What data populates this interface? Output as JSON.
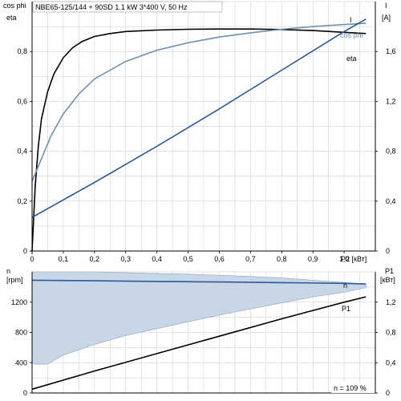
{
  "chart_data": [
    {
      "type": "line",
      "title": "NBE65-125/144 + 90SD   1.1 kW   3*400 V, 50 Hz",
      "left_axis_labels": [
        "cos phi",
        "eta"
      ],
      "right_axis_label": "I",
      "right_axis_unit": "[A]",
      "x_axis_label": "P2 [кВт]",
      "xlim": [
        0,
        1.1
      ],
      "ylim_left": [
        0,
        1.0
      ],
      "ylim_right": [
        0,
        2.0
      ],
      "x_ticks": [
        "0",
        "0,1",
        "0,2",
        "0,3",
        "0,4",
        "0,5",
        "0,6",
        "0,7",
        "0,8",
        "0,9",
        "1,0"
      ],
      "y_left_ticks": [
        "0",
        "0,2",
        "0,4",
        "0,6",
        "0,8"
      ],
      "y_right_ticks": [
        "0",
        "0,4",
        "0,8",
        "1,2",
        "1,6"
      ],
      "grid": true,
      "series": [
        {
          "name": "eta",
          "color": "#000000",
          "axis": "left",
          "x": [
            0,
            0.01,
            0.02,
            0.03,
            0.05,
            0.07,
            0.1,
            0.13,
            0.16,
            0.2,
            0.25,
            0.3,
            0.4,
            0.5,
            0.6,
            0.7,
            0.8,
            0.9,
            1.0,
            1.07
          ],
          "y": [
            0,
            0.26,
            0.42,
            0.53,
            0.64,
            0.71,
            0.775,
            0.815,
            0.84,
            0.86,
            0.872,
            0.88,
            0.886,
            0.889,
            0.89,
            0.89,
            0.888,
            0.884,
            0.877,
            0.872
          ]
        },
        {
          "name": "cos phi",
          "color": "#7090b0",
          "axis": "left",
          "x": [
            0,
            0.02,
            0.04,
            0.06,
            0.1,
            0.15,
            0.2,
            0.3,
            0.4,
            0.5,
            0.6,
            0.7,
            0.8,
            0.9,
            1.0,
            1.07
          ],
          "y": [
            0.28,
            0.34,
            0.4,
            0.46,
            0.55,
            0.63,
            0.69,
            0.76,
            0.805,
            0.835,
            0.858,
            0.875,
            0.889,
            0.9,
            0.908,
            0.913
          ]
        },
        {
          "name": "I",
          "color": "#2a5a9a",
          "axis": "right",
          "x": [
            0,
            0.2,
            0.4,
            0.6,
            0.8,
            1.0,
            1.07
          ],
          "y": [
            0.27,
            0.55,
            0.84,
            1.14,
            1.45,
            1.76,
            1.86
          ]
        }
      ]
    },
    {
      "type": "line",
      "left_axis_label": "n",
      "left_axis_unit": "[rpm]",
      "right_axis_label": "P1",
      "right_axis_unit": "[кВт]",
      "xlim": [
        0,
        1.1
      ],
      "ylim_left": [
        0,
        1600
      ],
      "ylim_right": [
        0,
        1.6
      ],
      "y_left_ticks": [
        "0",
        "400",
        "800",
        "1200"
      ],
      "y_right_ticks": [
        "0",
        "0,4",
        "0,8",
        "1,2"
      ],
      "grid": true,
      "annotation": "n = 109 %",
      "shaded_range": {
        "color": "#c9d6e6",
        "x": [
          0,
          0.01,
          0.05,
          0.1,
          0.2,
          0.3,
          0.4,
          0.5,
          0.6,
          0.7,
          0.8,
          0.9,
          1.0,
          1.07
        ],
        "lower": [
          400,
          380,
          380,
          500,
          640,
          760,
          850,
          940,
          1030,
          1110,
          1190,
          1270,
          1330,
          1390
        ],
        "upper": [
          1620,
          1618,
          1615,
          1610,
          1600,
          1590,
          1580,
          1570,
          1555,
          1540,
          1520,
          1490,
          1460,
          1440
        ]
      },
      "series": [
        {
          "name": "n",
          "color": "#2a5a9a",
          "axis": "left",
          "x": [
            0,
            0.2,
            0.4,
            0.6,
            0.8,
            1.0,
            1.07
          ],
          "y": [
            1490,
            1482,
            1474,
            1466,
            1458,
            1448,
            1440
          ]
        },
        {
          "name": "P1",
          "color": "#000000",
          "axis": "right",
          "x": [
            0,
            0.2,
            0.4,
            0.6,
            0.8,
            1.0,
            1.07
          ],
          "y": [
            0.05,
            0.29,
            0.52,
            0.75,
            0.98,
            1.2,
            1.27
          ]
        }
      ]
    }
  ]
}
